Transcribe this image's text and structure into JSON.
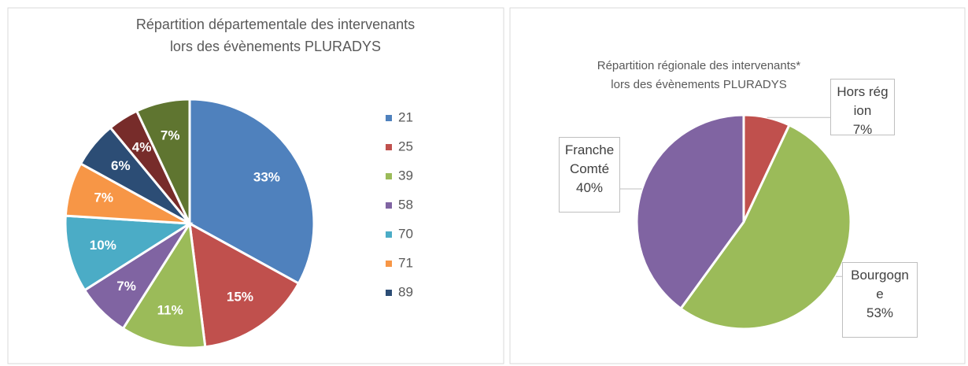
{
  "chart_data": [
    {
      "type": "pie",
      "title": [
        "Répartition départementale des intervenants",
        "lors des évènements PLURADYS"
      ],
      "categories": [
        "21",
        "25",
        "39",
        "58",
        "70",
        "71",
        "89",
        null,
        null
      ],
      "values": [
        33,
        15,
        11,
        7,
        10,
        7,
        6,
        4,
        7
      ],
      "value_labels": [
        "33%",
        "15%",
        "11%",
        "7%",
        "10%",
        "7%",
        "6%",
        "4%",
        "7%"
      ],
      "colors": [
        "#4f81bd",
        "#c0504d",
        "#9bbb59",
        "#8064a2",
        "#4bacc6",
        "#f79646",
        "#2c4d75",
        "#772c2a",
        "#5f7530"
      ],
      "legend": "right"
    },
    {
      "type": "pie",
      "title": [
        "Répartition régionale des intervenants*",
        "lors des évènements PLURADYS"
      ],
      "categories": [
        "Hors région",
        "Bourgogne",
        "Franche Comté"
      ],
      "values": [
        7,
        53,
        40
      ],
      "value_labels": [
        "7%",
        "53%",
        "40%"
      ],
      "colors": [
        "#c0504d",
        "#9bbb59",
        "#8064a2"
      ]
    }
  ]
}
